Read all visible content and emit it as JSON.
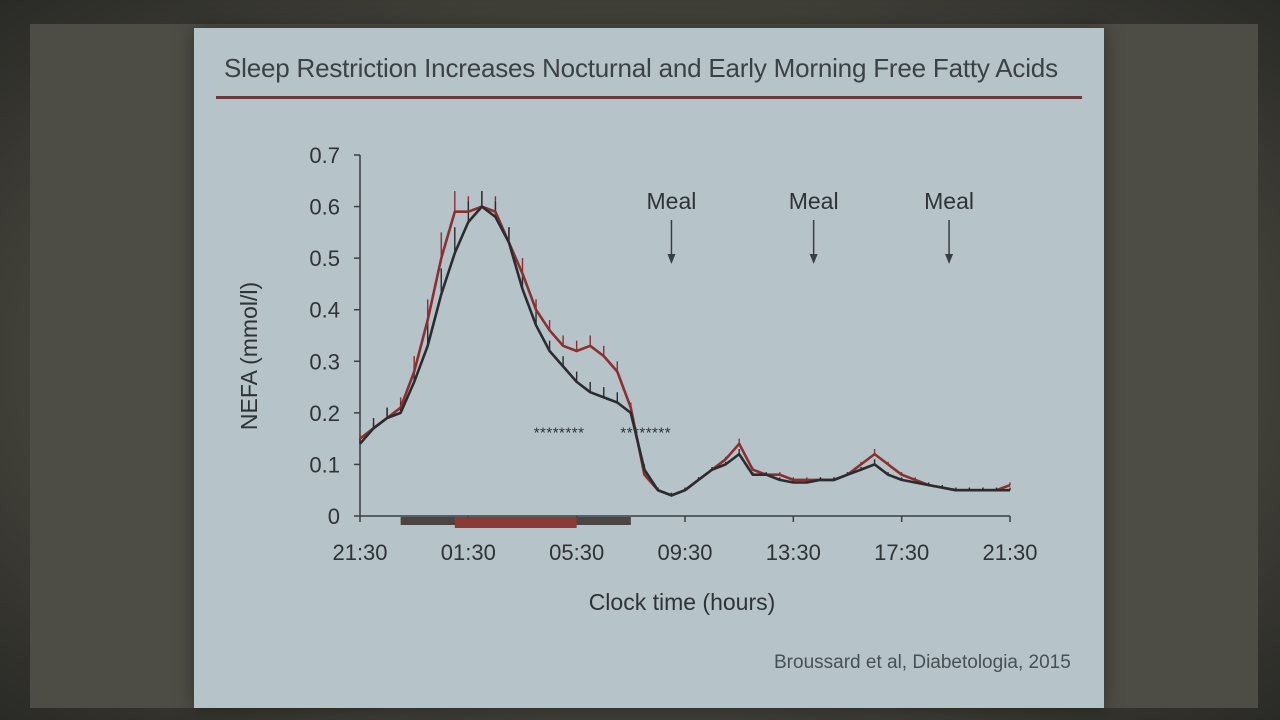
{
  "slide": {
    "title": "Sleep Restriction Increases Nocturnal and Early Morning Free Fatty Acids",
    "citation": "Broussard et al, Diabetologia, 2015"
  },
  "colors": {
    "slide_bg": "#b6c3c9",
    "restricted_series": "#8a3030",
    "normal_series": "#2a2d30",
    "title_rule": "#6b3a3a",
    "normal_sleep_bar": "#4a4543",
    "restricted_sleep_bar": "#8a3b35"
  },
  "chart_data": {
    "type": "line",
    "title": "",
    "xlabel": "Clock time (hours)",
    "ylabel": "NEFA (mmol/l)",
    "x_unit": "hours since 21:30",
    "xlim": [
      0,
      24
    ],
    "ylim": [
      0,
      0.7
    ],
    "x_ticks": [
      0,
      4,
      8,
      12,
      16,
      20,
      24
    ],
    "x_tick_labels": [
      "21:30",
      "01:30",
      "05:30",
      "09:30",
      "13:30",
      "17:30",
      "21:30"
    ],
    "y_ticks": [
      0,
      0.1,
      0.2,
      0.3,
      0.4,
      0.5,
      0.6,
      0.7
    ],
    "y_tick_labels": [
      "0",
      "0.1",
      "0.2",
      "0.3",
      "0.4",
      "0.5",
      "0.6",
      "0.7"
    ],
    "grid": false,
    "legend": "none",
    "series": [
      {
        "x": [
          0,
          0.5,
          1,
          1.5,
          2,
          2.5,
          3,
          3.5,
          4,
          4.5,
          5,
          5.5,
          6,
          6.5,
          7,
          7.5,
          8,
          8.5,
          9,
          9.5,
          10,
          10.5,
          11,
          11.5,
          12,
          12.5,
          13,
          13.5,
          14,
          14.5,
          15,
          15.5,
          16,
          16.5,
          17,
          17.5,
          18,
          18.5,
          19,
          19.5,
          20,
          20.5,
          21,
          21.5,
          22,
          22.5,
          23,
          23.5,
          24
        ],
        "values": [
          0.15,
          0.17,
          0.19,
          0.21,
          0.28,
          0.38,
          0.5,
          0.59,
          0.59,
          0.6,
          0.59,
          0.53,
          0.47,
          0.4,
          0.36,
          0.33,
          0.32,
          0.33,
          0.31,
          0.28,
          0.21,
          0.08,
          0.05,
          0.04,
          0.05,
          0.07,
          0.09,
          0.11,
          0.14,
          0.09,
          0.08,
          0.08,
          0.07,
          0.07,
          0.07,
          0.07,
          0.08,
          0.1,
          0.12,
          0.1,
          0.08,
          0.07,
          0.06,
          0.055,
          0.05,
          0.05,
          0.05,
          0.05,
          0.06
        ],
        "error": [
          0.01,
          0.01,
          0.02,
          0.02,
          0.03,
          0.04,
          0.05,
          0.04,
          0.03,
          0.03,
          0.03,
          0.03,
          0.03,
          0.02,
          0.02,
          0.02,
          0.02,
          0.02,
          0.02,
          0.02,
          0.01,
          0.01,
          0.005,
          0.005,
          0.005,
          0.005,
          0.005,
          0.005,
          0.01,
          0.005,
          0.005,
          0.005,
          0.005,
          0.005,
          0.005,
          0.005,
          0.005,
          0.005,
          0.01,
          0.005,
          0.005,
          0.005,
          0.005,
          0.005,
          0.005,
          0.005,
          0.005,
          0.005,
          0.005
        ]
      },
      {
        "x": [
          0,
          0.5,
          1,
          1.5,
          2,
          2.5,
          3,
          3.5,
          4,
          4.5,
          5,
          5.5,
          6,
          6.5,
          7,
          7.5,
          8,
          8.5,
          9,
          9.5,
          10,
          10.5,
          11,
          11.5,
          12,
          12.5,
          13,
          13.5,
          14,
          14.5,
          15,
          15.5,
          16,
          16.5,
          17,
          17.5,
          18,
          18.5,
          19,
          19.5,
          20,
          20.5,
          21,
          21.5,
          22,
          22.5,
          23,
          23.5,
          24
        ],
        "values": [
          0.14,
          0.17,
          0.19,
          0.2,
          0.26,
          0.33,
          0.43,
          0.51,
          0.57,
          0.6,
          0.58,
          0.53,
          0.44,
          0.37,
          0.32,
          0.29,
          0.26,
          0.24,
          0.23,
          0.22,
          0.2,
          0.09,
          0.05,
          0.04,
          0.05,
          0.07,
          0.09,
          0.1,
          0.12,
          0.08,
          0.08,
          0.07,
          0.065,
          0.065,
          0.07,
          0.07,
          0.08,
          0.09,
          0.1,
          0.08,
          0.07,
          0.065,
          0.06,
          0.055,
          0.05,
          0.05,
          0.05,
          0.05,
          0.05
        ],
        "error": [
          0.01,
          0.02,
          0.02,
          0.02,
          0.03,
          0.05,
          0.05,
          0.05,
          0.04,
          0.03,
          0.03,
          0.03,
          0.03,
          0.03,
          0.02,
          0.02,
          0.02,
          0.02,
          0.02,
          0.02,
          0.01,
          0.01,
          0.005,
          0.005,
          0.005,
          0.005,
          0.005,
          0.005,
          0.01,
          0.005,
          0.005,
          0.005,
          0.005,
          0.005,
          0.005,
          0.005,
          0.005,
          0.005,
          0.01,
          0.005,
          0.005,
          0.005,
          0.005,
          0.005,
          0.005,
          0.005,
          0.005,
          0.005,
          0.005
        ]
      }
    ],
    "meal_annotations": [
      {
        "x": 11.5,
        "label": "Meal"
      },
      {
        "x": 16.75,
        "label": "Meal"
      },
      {
        "x": 21.75,
        "label": "Meal"
      }
    ],
    "significance_annotations": [
      {
        "x_start": 6.4,
        "x_end": 8.3,
        "y": 0.17,
        "text": "********"
      },
      {
        "x_start": 9.6,
        "x_end": 11.5,
        "y": 0.17,
        "text": "********"
      }
    ],
    "sleep_bars": [
      {
        "x_start": 1.5,
        "x_end": 10.0
      },
      {
        "x_start": 3.5,
        "x_end": 8.0
      }
    ]
  }
}
